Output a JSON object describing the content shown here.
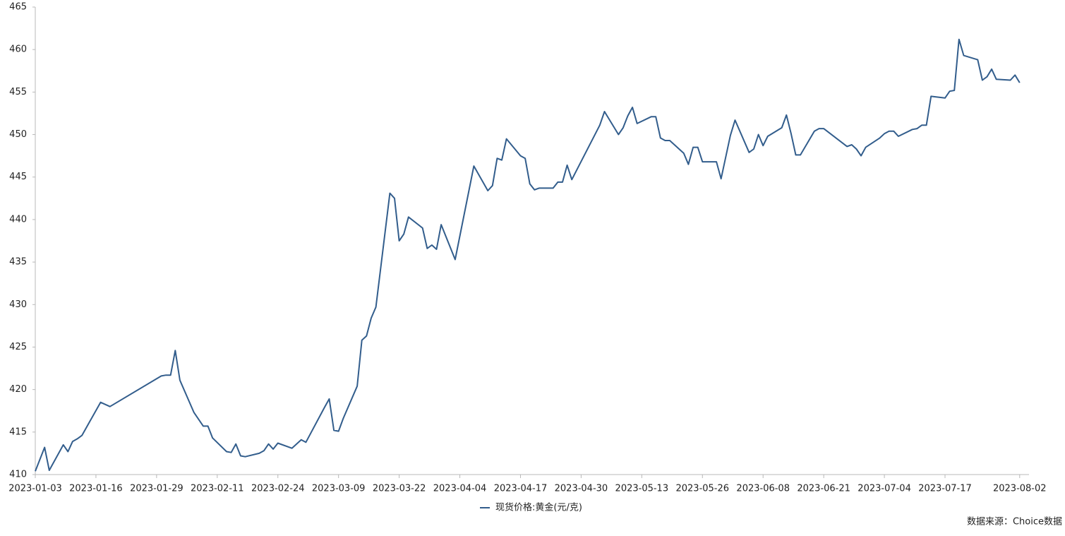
{
  "chart_data": {
    "type": "line",
    "x": [
      "2023-01-03",
      "2023-01-05",
      "2023-01-06",
      "2023-01-09",
      "2023-01-10",
      "2023-01-11",
      "2023-01-12",
      "2023-01-13",
      "2023-01-17",
      "2023-01-19",
      "2023-01-30",
      "2023-01-31",
      "2023-02-01",
      "2023-02-02",
      "2023-02-03",
      "2023-02-06",
      "2023-02-08",
      "2023-02-09",
      "2023-02-10",
      "2023-02-13",
      "2023-02-14",
      "2023-02-15",
      "2023-02-16",
      "2023-02-17",
      "2023-02-20",
      "2023-02-21",
      "2023-02-22",
      "2023-02-23",
      "2023-02-24",
      "2023-02-27",
      "2023-02-28",
      "2023-03-01",
      "2023-03-02",
      "2023-03-06",
      "2023-03-07",
      "2023-03-08",
      "2023-03-09",
      "2023-03-10",
      "2023-03-13",
      "2023-03-14",
      "2023-03-15",
      "2023-03-16",
      "2023-03-17",
      "2023-03-20",
      "2023-03-21",
      "2023-03-22",
      "2023-03-23",
      "2023-03-24",
      "2023-03-27",
      "2023-03-28",
      "2023-03-29",
      "2023-03-30",
      "2023-03-31",
      "2023-04-03",
      "2023-04-07",
      "2023-04-10",
      "2023-04-11",
      "2023-04-12",
      "2023-04-13",
      "2023-04-14",
      "2023-04-17",
      "2023-04-18",
      "2023-04-19",
      "2023-04-20",
      "2023-04-21",
      "2023-04-24",
      "2023-04-25",
      "2023-04-26",
      "2023-04-27",
      "2023-04-28",
      "2023-05-04",
      "2023-05-05",
      "2023-05-08",
      "2023-05-09",
      "2023-05-10",
      "2023-05-11",
      "2023-05-12",
      "2023-05-15",
      "2023-05-16",
      "2023-05-17",
      "2023-05-18",
      "2023-05-19",
      "2023-05-22",
      "2023-05-23",
      "2023-05-24",
      "2023-05-25",
      "2023-05-26",
      "2023-05-29",
      "2023-05-30",
      "2023-06-01",
      "2023-06-02",
      "2023-06-05",
      "2023-06-06",
      "2023-06-07",
      "2023-06-08",
      "2023-06-09",
      "2023-06-12",
      "2023-06-13",
      "2023-06-14",
      "2023-06-15",
      "2023-06-16",
      "2023-06-19",
      "2023-06-20",
      "2023-06-21",
      "2023-06-26",
      "2023-06-27",
      "2023-06-28",
      "2023-06-29",
      "2023-06-30",
      "2023-07-03",
      "2023-07-04",
      "2023-07-05",
      "2023-07-06",
      "2023-07-07",
      "2023-07-10",
      "2023-07-11",
      "2023-07-12",
      "2023-07-13",
      "2023-07-14",
      "2023-07-17",
      "2023-07-18",
      "2023-07-19",
      "2023-07-20",
      "2023-07-21",
      "2023-07-24",
      "2023-07-25",
      "2023-07-26",
      "2023-07-27",
      "2023-07-28",
      "2023-07-31",
      "2023-08-01",
      "2023-08-02"
    ],
    "series": [
      {
        "name": "现货价格:黄金(元/克)",
        "color": "#325d8c",
        "values": [
          410.4,
          413.2,
          410.5,
          413.5,
          412.7,
          413.9,
          414.2,
          414.6,
          418.5,
          418.0,
          421.6,
          421.7,
          421.7,
          424.6,
          421.1,
          417.3,
          415.7,
          415.7,
          414.3,
          412.7,
          412.6,
          413.6,
          412.2,
          412.1,
          412.5,
          412.8,
          413.6,
          413.0,
          413.7,
          413.1,
          413.6,
          414.1,
          413.8,
          417.9,
          418.9,
          415.2,
          415.1,
          416.6,
          420.4,
          425.8,
          426.3,
          428.4,
          429.7,
          443.1,
          442.5,
          437.5,
          438.3,
          440.3,
          439.0,
          436.6,
          437.0,
          436.5,
          439.4,
          435.3,
          446.3,
          443.4,
          444.0,
          447.2,
          447.0,
          449.5,
          447.5,
          447.2,
          444.2,
          443.5,
          443.7,
          443.7,
          444.4,
          444.4,
          446.4,
          444.7,
          451.1,
          452.7,
          450.0,
          450.8,
          452.2,
          453.2,
          451.3,
          452.1,
          452.1,
          449.6,
          449.3,
          449.3,
          447.8,
          446.5,
          448.5,
          448.5,
          446.8,
          446.8,
          444.8,
          449.9,
          451.7,
          447.9,
          448.3,
          450.0,
          448.7,
          449.8,
          450.8,
          452.3,
          450.1,
          447.6,
          447.6,
          450.4,
          450.7,
          450.7,
          448.6,
          448.8,
          448.3,
          447.5,
          448.5,
          449.6,
          450.1,
          450.4,
          450.4,
          449.8,
          450.6,
          450.7,
          451.1,
          451.1,
          454.5,
          454.3,
          455.1,
          455.2,
          461.2,
          459.3,
          458.8,
          456.4,
          456.8,
          457.7,
          456.5,
          456.4,
          457.0,
          456.1
        ]
      }
    ],
    "xlim": [
      "2023-01-03",
      "2023-08-04"
    ],
    "xticks": [
      "2023-01-03",
      "2023-01-16",
      "2023-01-29",
      "2023-02-11",
      "2023-02-24",
      "2023-03-09",
      "2023-03-22",
      "2023-04-04",
      "2023-04-17",
      "2023-04-30",
      "2023-05-13",
      "2023-05-26",
      "2023-06-08",
      "2023-06-21",
      "2023-07-04",
      "2023-07-17",
      "2023-08-02"
    ],
    "ylim": [
      410,
      465
    ],
    "yticks": [
      410,
      415,
      420,
      425,
      430,
      435,
      440,
      445,
      450,
      455,
      460,
      465
    ],
    "grid": false,
    "legend": "bottom",
    "source": "数据来源：Choice数据"
  }
}
